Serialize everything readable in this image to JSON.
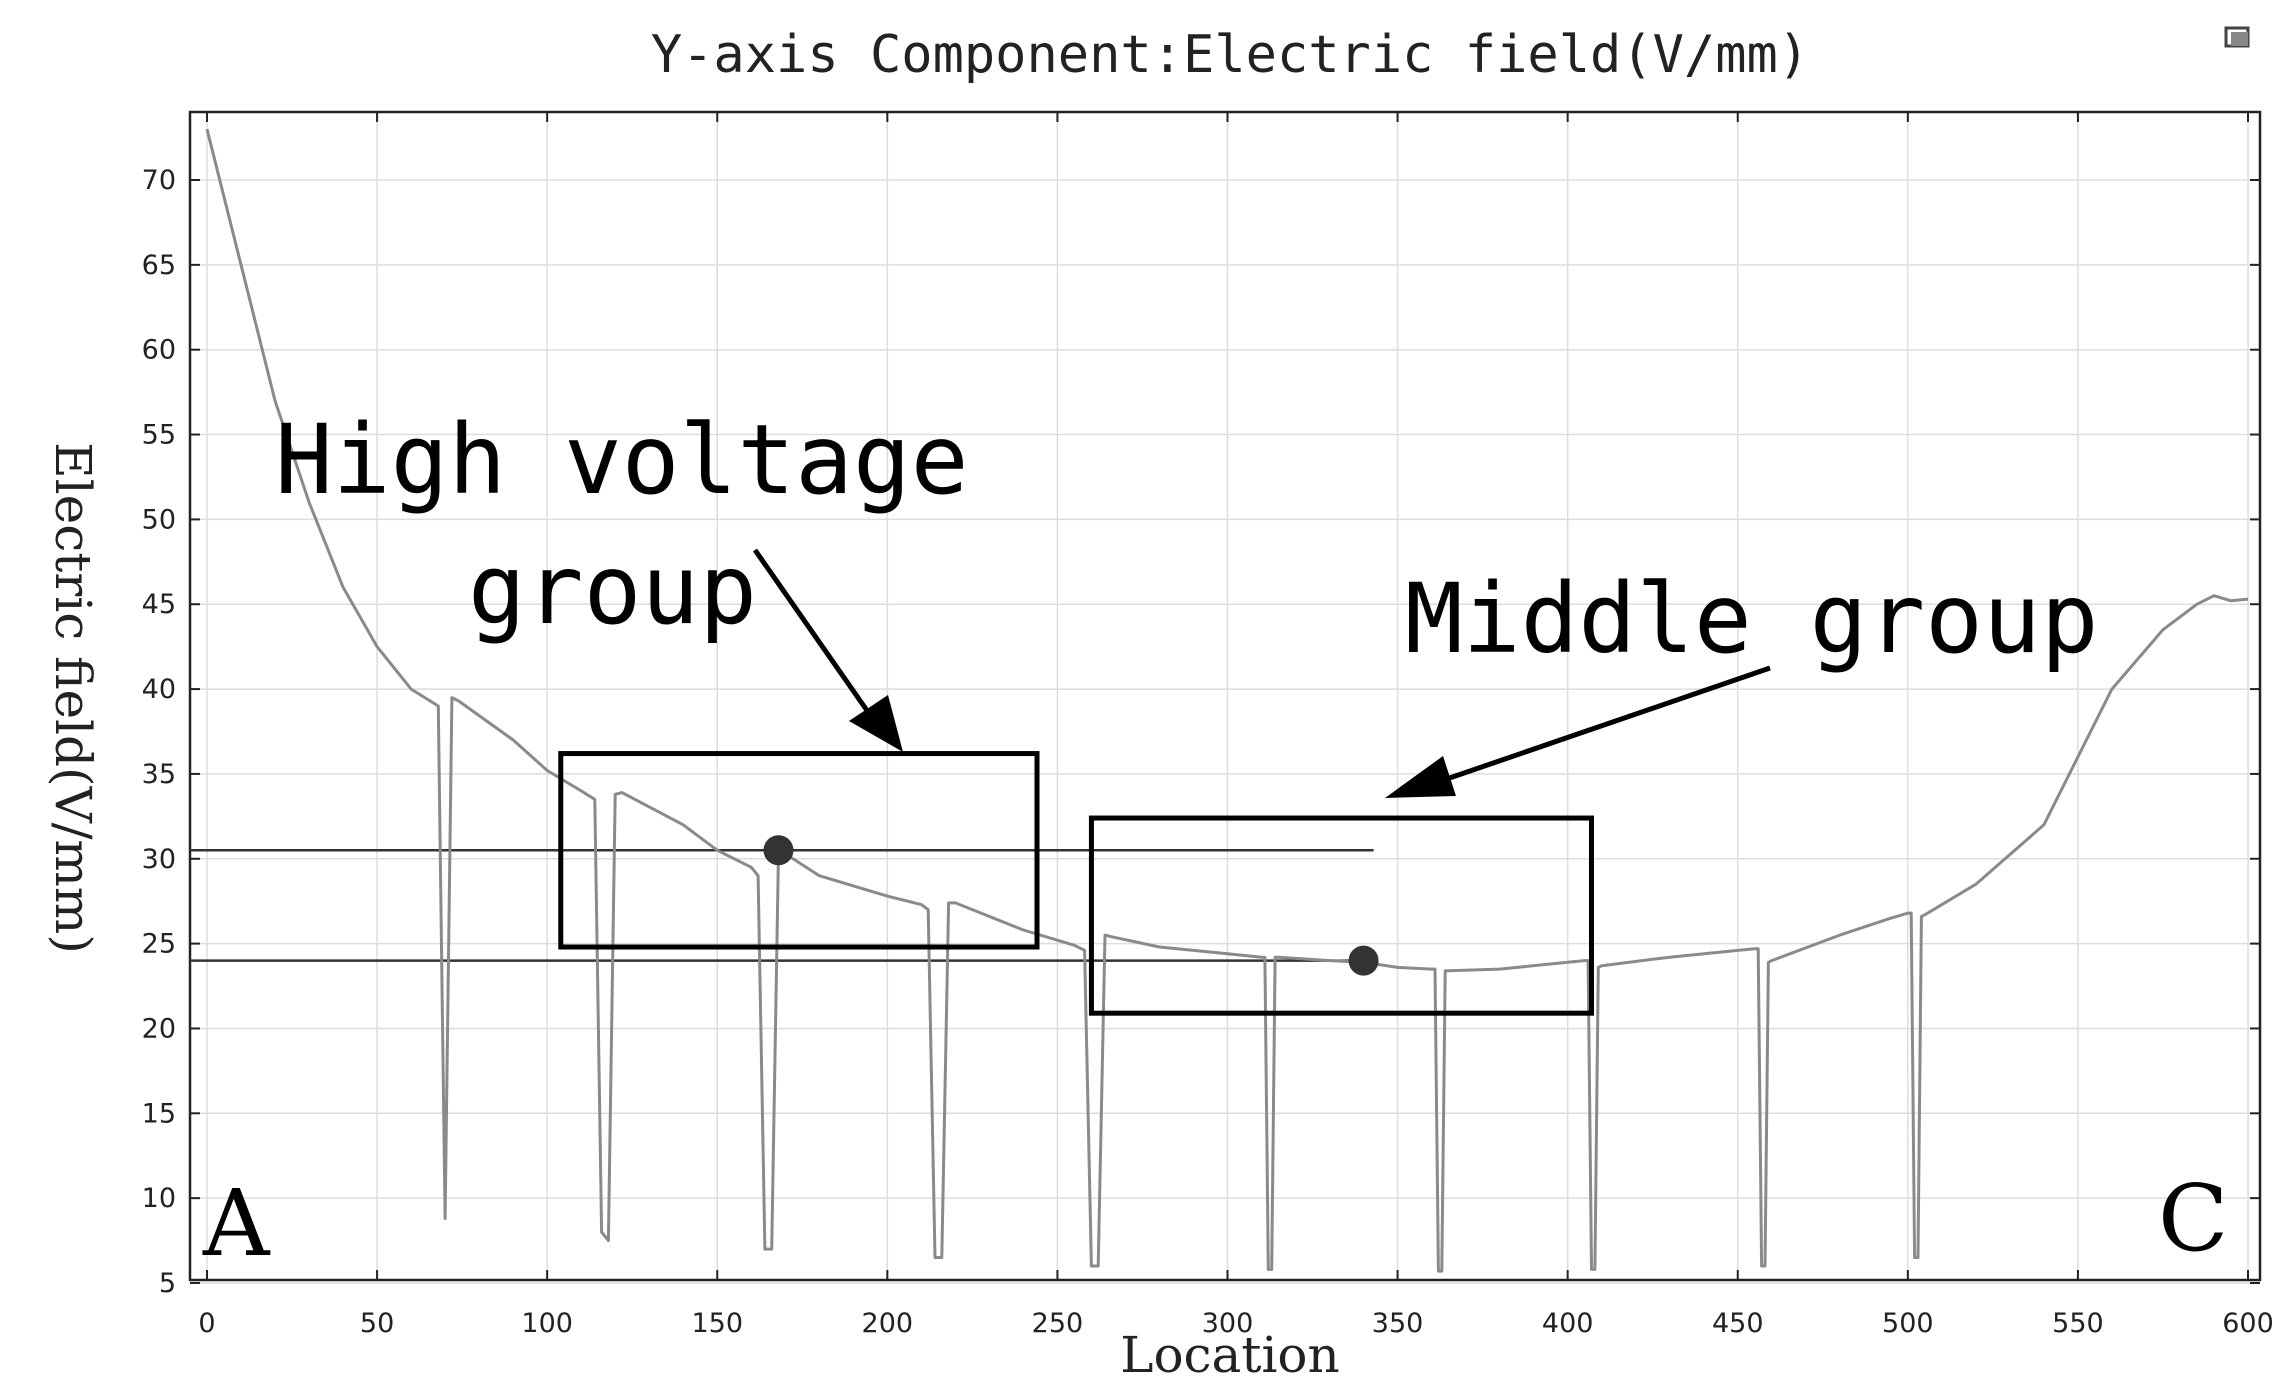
{
  "chart_data": {
    "type": "line",
    "title": "Y-axis Component:Electric field(V/mm)",
    "xlabel": "Location",
    "ylabel": "Electric field(V/mm)",
    "xlim": [
      0,
      600
    ],
    "ylim": [
      5,
      74
    ],
    "xticks": [
      0,
      50,
      100,
      150,
      200,
      250,
      300,
      350,
      400,
      450,
      500,
      550,
      600
    ],
    "yticks": [
      5,
      10,
      15,
      20,
      25,
      30,
      35,
      40,
      45,
      50,
      55,
      60,
      65,
      70
    ],
    "grid": true,
    "series": [
      {
        "x": [
          0,
          10,
          20,
          30,
          40,
          50,
          60,
          68,
          70,
          72,
          74,
          90,
          100,
          110,
          114,
          116,
          118,
          120,
          122,
          140,
          150,
          160,
          162,
          164,
          166,
          168,
          170,
          180,
          200,
          210,
          212,
          214,
          216,
          218,
          220,
          240,
          255,
          258,
          260,
          262,
          264,
          266,
          280,
          300,
          310,
          311,
          312,
          313,
          314,
          315,
          330,
          340,
          350,
          360,
          361,
          362,
          363,
          364,
          365,
          380,
          400,
          405,
          406,
          407,
          408,
          409,
          410,
          430,
          450,
          455,
          456,
          457,
          458,
          459,
          460,
          480,
          495,
          500,
          501,
          502,
          503,
          504,
          505,
          520,
          540,
          560,
          575,
          585,
          590,
          595,
          600
        ],
        "y": [
          73,
          65,
          57,
          51,
          46,
          42.5,
          40,
          39,
          8.8,
          39.5,
          39.3,
          37,
          35.2,
          34,
          33.5,
          8,
          7.5,
          33.8,
          33.9,
          32,
          30.5,
          29.5,
          29,
          7,
          7,
          30.4,
          30.3,
          29,
          27.8,
          27.3,
          27,
          6.5,
          6.5,
          27.4,
          27.4,
          25.8,
          24.9,
          24.6,
          6,
          6,
          25.5,
          25.4,
          24.8,
          24.4,
          24.2,
          24.2,
          5.8,
          5.8,
          24.2,
          24.2,
          24,
          23.9,
          23.6,
          23.5,
          23.5,
          5.7,
          5.7,
          23.4,
          23.4,
          23.5,
          23.9,
          24,
          24,
          5.8,
          5.8,
          23.6,
          23.7,
          24.2,
          24.6,
          24.7,
          24.7,
          6,
          6,
          23.9,
          24,
          25.5,
          26.5,
          26.8,
          26.8,
          6.5,
          6.5,
          26.6,
          26.7,
          28.5,
          32,
          40,
          43.5,
          45,
          45.5,
          45.2,
          45.3
        ]
      }
    ],
    "reference_lines": [
      30.5,
      24
    ],
    "markers": [
      {
        "x": 168,
        "y": 30.5
      },
      {
        "x": 340,
        "y": 24
      }
    ],
    "annotations": [
      {
        "text": [
          "High voltage",
          "group"
        ],
        "box": {
          "x": [
            104,
            244
          ],
          "y": [
            24.8,
            36.2
          ]
        }
      },
      {
        "text": [
          "Middle group"
        ],
        "box": {
          "x": [
            260,
            407
          ],
          "y": [
            20.9,
            32.4
          ]
        }
      }
    ],
    "corner_labels": [
      "A",
      "C"
    ]
  }
}
